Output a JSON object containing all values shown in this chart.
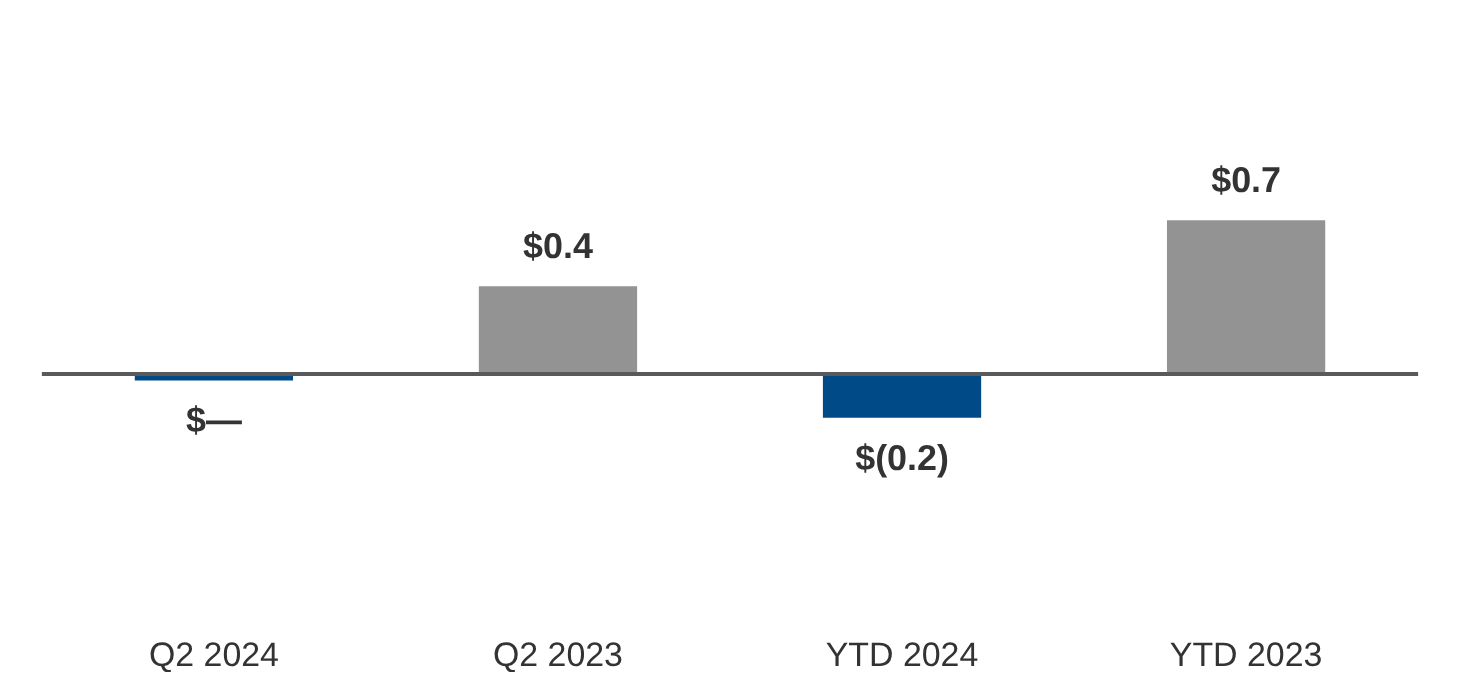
{
  "chart_data": {
    "type": "bar",
    "categories": [
      "Q2 2024",
      "Q2 2023",
      "YTD 2024",
      "YTD 2023"
    ],
    "values": [
      -0.03,
      0.4,
      -0.2,
      0.7
    ],
    "colors": [
      "#004b87",
      "#939393",
      "#004b87",
      "#939393"
    ],
    "value_labels": [
      "$—",
      "$0.4",
      "$(0.2)",
      "$0.7"
    ],
    "ref_lines": [
      {
        "axis": "y",
        "value": 0,
        "color": "#595959"
      }
    ],
    "tick_labels": "x",
    "grid": false
  }
}
